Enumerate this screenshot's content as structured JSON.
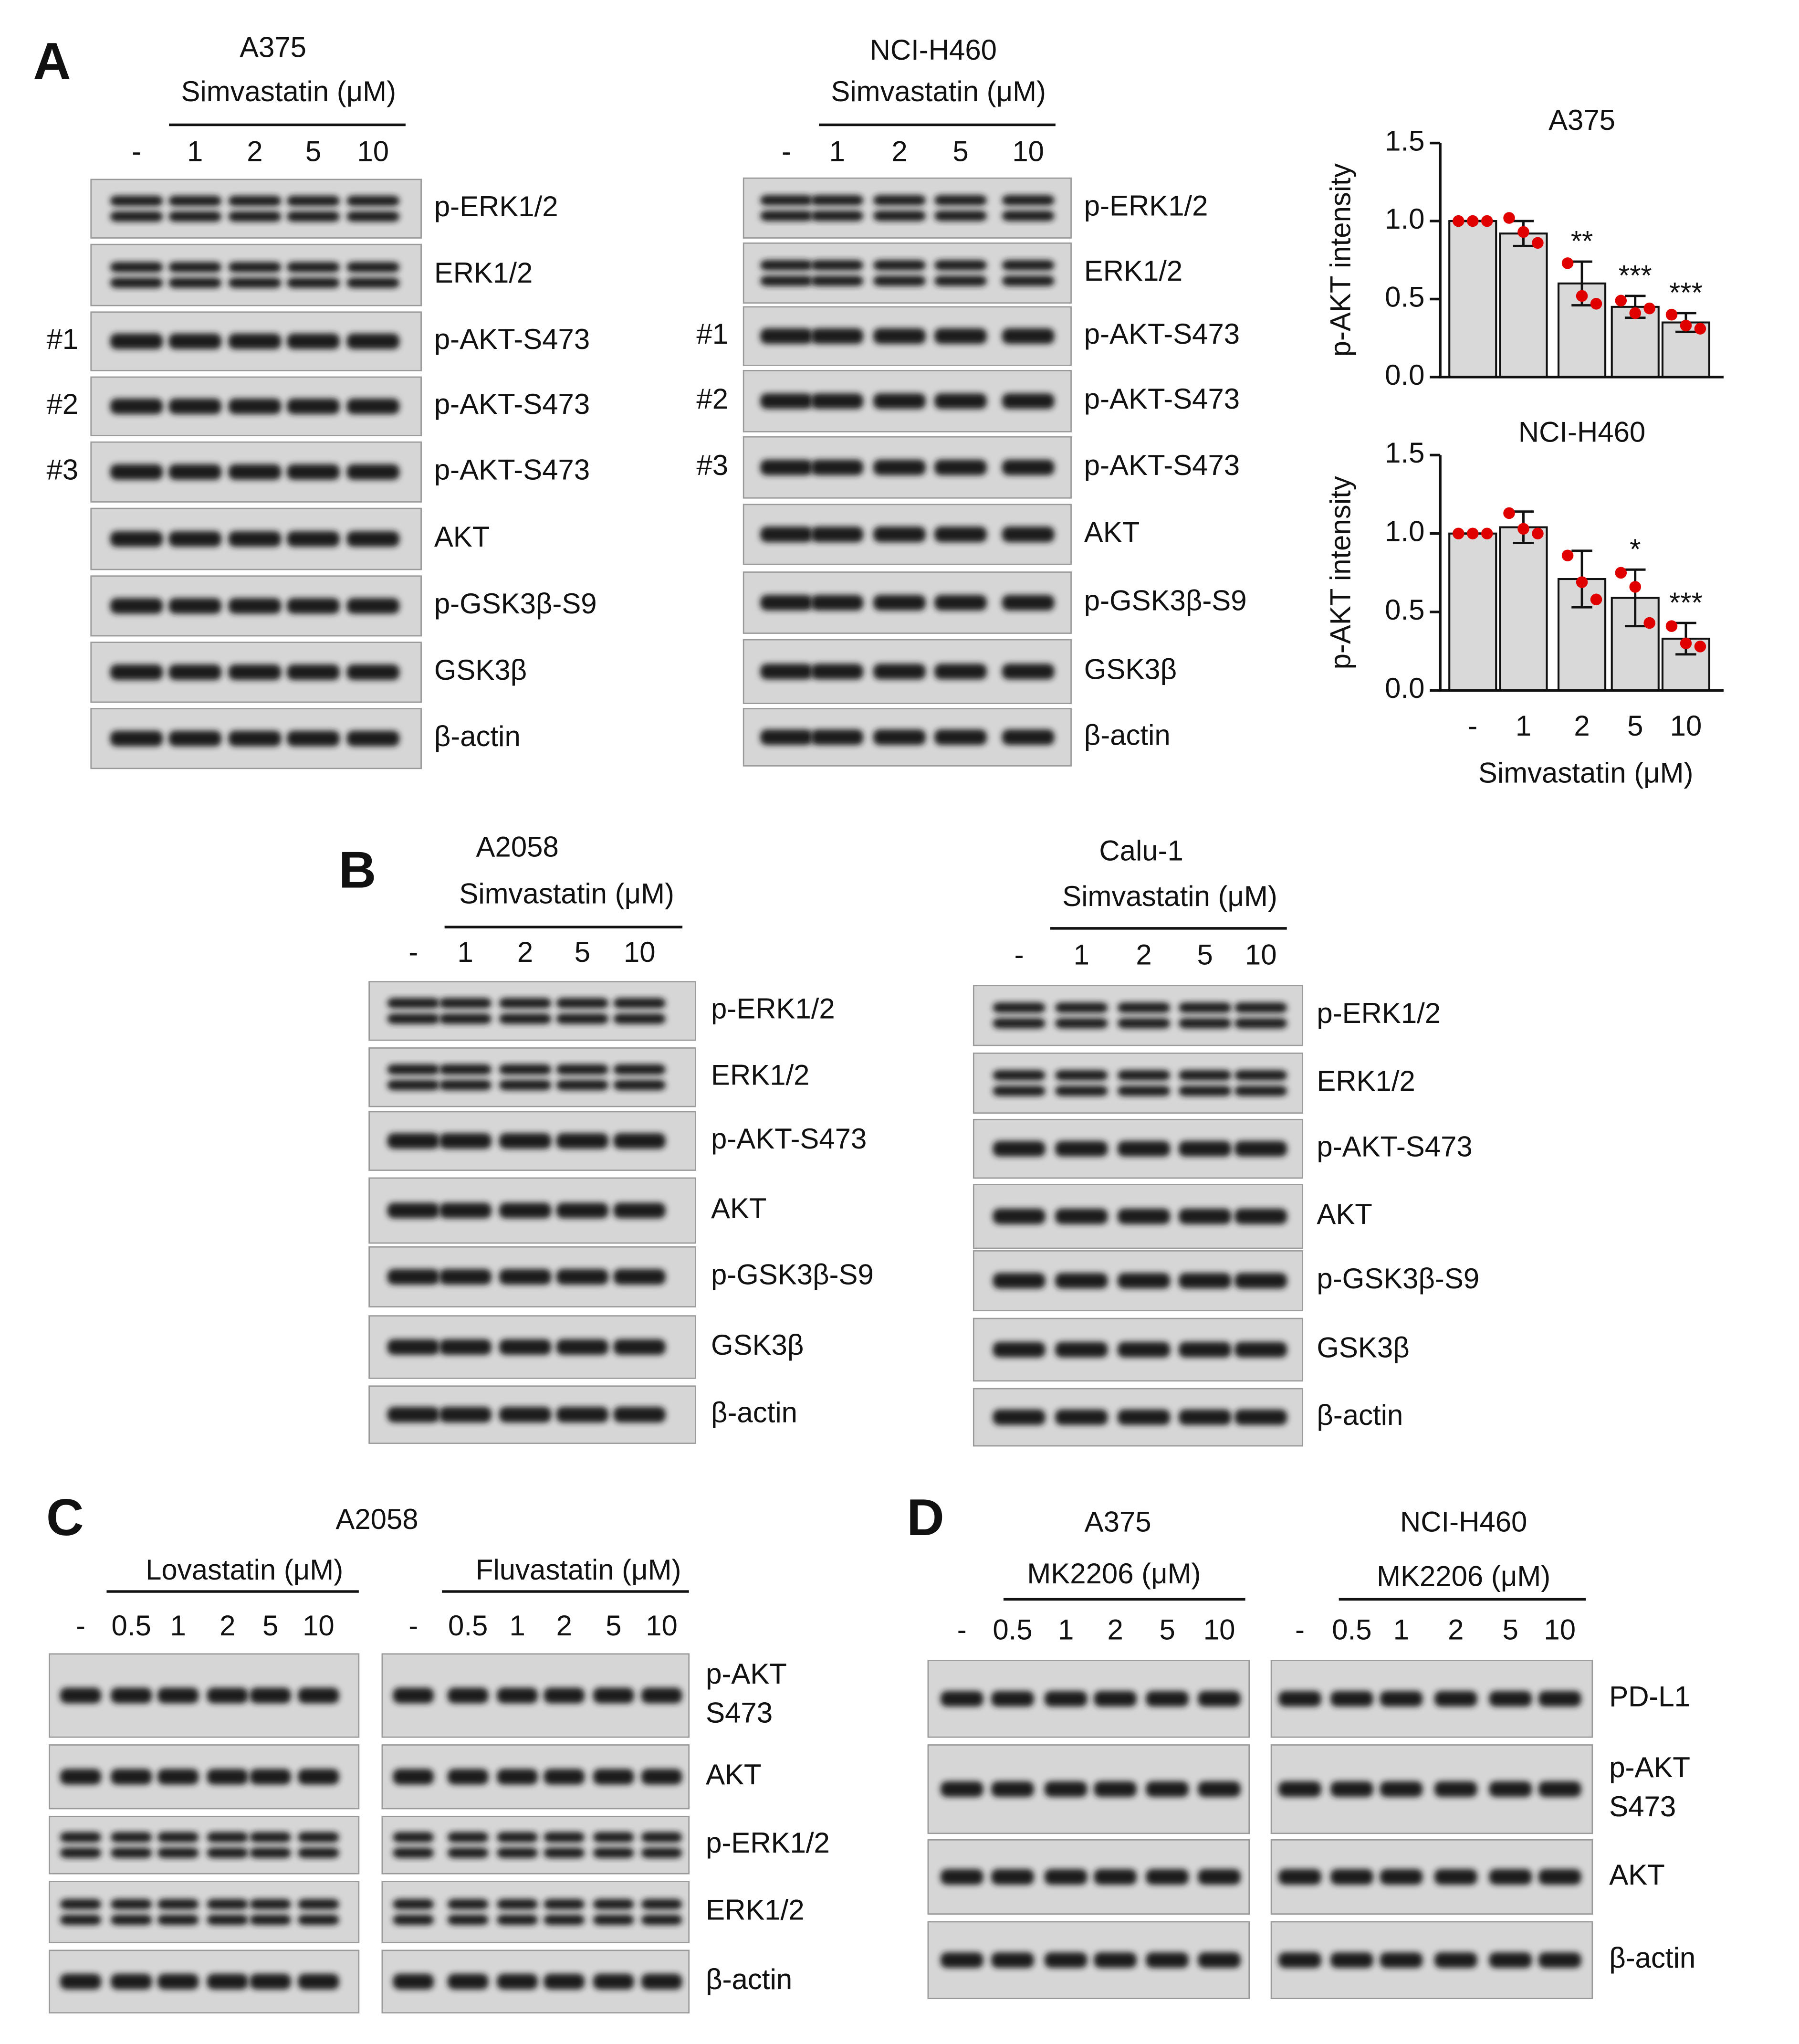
{
  "panels": [
    {
      "label": "A",
      "blots": [
        {
          "cell_line": "A375",
          "treatment": "Simvastatin (μM)",
          "lanes": [
            "-",
            "1",
            "2",
            "5",
            "10"
          ],
          "rows": [
            {
              "label": "p-ERK1/2"
            },
            {
              "label": "ERK1/2"
            },
            {
              "prefix": "#1",
              "label": "p-AKT-S473"
            },
            {
              "prefix": "#2",
              "label": "p-AKT-S473"
            },
            {
              "prefix": "#3",
              "label": "p-AKT-S473"
            },
            {
              "label": "AKT"
            },
            {
              "label": "p-GSK3β-S9"
            },
            {
              "label": "GSK3β"
            },
            {
              "label": "β-actin"
            }
          ]
        },
        {
          "cell_line": "NCI-H460",
          "treatment": "Simvastatin (μM)",
          "lanes": [
            "-",
            "1",
            "2",
            "5",
            "10"
          ],
          "rows": [
            {
              "label": "p-ERK1/2"
            },
            {
              "label": "ERK1/2"
            },
            {
              "prefix": "#1",
              "label": "p-AKT-S473"
            },
            {
              "prefix": "#2",
              "label": "p-AKT-S473"
            },
            {
              "prefix": "#3",
              "label": "p-AKT-S473"
            },
            {
              "label": "AKT"
            },
            {
              "label": "p-GSK3β-S9"
            },
            {
              "label": "GSK3β"
            },
            {
              "label": "β-actin"
            }
          ]
        }
      ],
      "charts": {
        "type": "bar",
        "categories": [
          "-",
          "1",
          "2",
          "5",
          "10"
        ],
        "xlabel": "Simvastatin (μM)",
        "ylabel": "p-AKT intensity",
        "ylim": [
          0,
          1.5
        ],
        "yticks": [
          {
            "value": 0,
            "label": "0.0"
          },
          0.5,
          {
            "value": 1,
            "label": "1.0"
          },
          1.5
        ],
        "bar_color": "#d9d9d9",
        "point_color": "#e00000",
        "plots": [
          {
            "title": "A375",
            "values": [
              1.0,
              0.92,
              0.6,
              0.45,
              0.35
            ],
            "errors": [
              0,
              0.08,
              0.14,
              0.07,
              0.06
            ],
            "points": [
              [
                1,
                1,
                1
              ],
              [
                1.02,
                0.93,
                0.86
              ],
              [
                0.73,
                0.52,
                0.47
              ],
              [
                0.49,
                0.41,
                0.44
              ],
              [
                0.4,
                0.33,
                0.31
              ]
            ],
            "annotations": [
              null,
              null,
              "**",
              "***",
              "***"
            ]
          },
          {
            "title": "NCI-H460",
            "values": [
              1.0,
              1.04,
              0.71,
              0.59,
              0.33
            ],
            "errors": [
              0,
              0.1,
              0.18,
              0.18,
              0.1
            ],
            "points": [
              [
                1,
                1,
                1
              ],
              [
                1.13,
                1.03,
                1.0
              ],
              [
                0.86,
                0.69,
                0.58
              ],
              [
                0.75,
                0.66,
                0.43
              ],
              [
                0.41,
                0.3,
                0.28
              ]
            ],
            "annotations": [
              null,
              null,
              null,
              "*",
              "***"
            ]
          }
        ]
      }
    },
    {
      "label": "B",
      "blots": [
        {
          "cell_line": "A2058",
          "treatment": "Simvastatin (μM)",
          "lanes": [
            "-",
            "1",
            "2",
            "5",
            "10"
          ],
          "rows": [
            {
              "label": "p-ERK1/2"
            },
            {
              "label": "ERK1/2"
            },
            {
              "label": "p-AKT-S473"
            },
            {
              "label": "AKT"
            },
            {
              "label": "p-GSK3β-S9"
            },
            {
              "label": "GSK3β"
            },
            {
              "label": "β-actin"
            }
          ]
        },
        {
          "cell_line": "Calu-1",
          "treatment": "Simvastatin (μM)",
          "lanes": [
            "-",
            "1",
            "2",
            "5",
            "10"
          ],
          "rows": [
            {
              "label": "p-ERK1/2"
            },
            {
              "label": "ERK1/2"
            },
            {
              "label": "p-AKT-S473"
            },
            {
              "label": "AKT"
            },
            {
              "label": "p-GSK3β-S9"
            },
            {
              "label": "GSK3β"
            },
            {
              "label": "β-actin"
            }
          ]
        }
      ]
    },
    {
      "label": "C",
      "cell_line": "A2058",
      "blots": [
        {
          "treatment": "Lovastatin (μM)",
          "lanes": [
            "-",
            "0.5",
            "1",
            "2",
            "5",
            "10"
          ],
          "rows": [
            {
              "label": [
                "p-AKT",
                "S473"
              ]
            },
            {
              "label": "AKT"
            },
            {
              "label": "p-ERK1/2"
            },
            {
              "label": "ERK1/2"
            },
            {
              "label": "β-actin"
            }
          ]
        },
        {
          "treatment": "Fluvastatin (μM)",
          "lanes": [
            "-",
            "0.5",
            "1",
            "2",
            "5",
            "10"
          ],
          "rows": [
            {
              "label": [
                "p-AKT",
                "S473"
              ]
            },
            {
              "label": "AKT"
            },
            {
              "label": "p-ERK1/2"
            },
            {
              "label": "ERK1/2"
            },
            {
              "label": "β-actin"
            }
          ]
        }
      ]
    },
    {
      "label": "D",
      "blots": [
        {
          "cell_line": "A375",
          "treatment": "MK2206 (μM)",
          "lanes": [
            "-",
            "0.5",
            "1",
            "2",
            "5",
            "10"
          ],
          "rows": [
            {
              "label": "PD-L1"
            },
            {
              "label": [
                "p-AKT",
                "S473"
              ]
            },
            {
              "label": "AKT"
            },
            {
              "label": "β-actin"
            }
          ]
        },
        {
          "cell_line": "NCI-H460",
          "treatment": "MK2206 (μM)",
          "lanes": [
            "-",
            "0.5",
            "1",
            "2",
            "5",
            "10"
          ],
          "rows": [
            {
              "label": "PD-L1"
            },
            {
              "label": [
                "p-AKT",
                "S473"
              ]
            },
            {
              "label": "AKT"
            },
            {
              "label": "β-actin"
            }
          ]
        }
      ]
    }
  ]
}
